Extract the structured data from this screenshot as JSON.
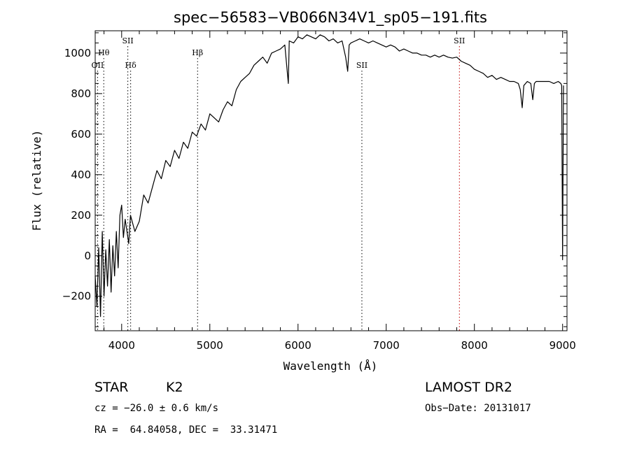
{
  "chart_data": {
    "type": "line",
    "title": "spec−56583−VB066N34V1_sp05−191.fits",
    "xlabel": "Wavelength (Å)",
    "ylabel": "Flux (relative)",
    "xlim": [
      3700,
      9050
    ],
    "ylim": [
      -370,
      1110
    ],
    "xticks": [
      4000,
      5000,
      6000,
      7000,
      8000,
      9000
    ],
    "yticks": [
      -200,
      0,
      200,
      400,
      600,
      800,
      1000
    ],
    "ytick_labels": [
      "−200",
      "0",
      "200",
      "400",
      "600",
      "800",
      "1000"
    ],
    "grid": false,
    "line_color": "#000000",
    "series": [
      {
        "x": [
          3700,
          3720,
          3740,
          3760,
          3780,
          3800,
          3820,
          3840,
          3860,
          3880,
          3900,
          3920,
          3940,
          3960,
          3980,
          4000,
          4020,
          4040,
          4060,
          4080,
          4100,
          4150,
          4200,
          4250,
          4300,
          4350,
          4400,
          4450,
          4500,
          4550,
          4600,
          4650,
          4700,
          4750,
          4800,
          4850,
          4900,
          4950,
          5000,
          5050,
          5100,
          5150,
          5200,
          5250,
          5300,
          5350,
          5400,
          5450,
          5500,
          5550,
          5600,
          5650,
          5700,
          5750,
          5800,
          5850,
          5890,
          5900,
          5950,
          6000,
          6050,
          6100,
          6150,
          6200,
          6250,
          6300,
          6350,
          6400,
          6450,
          6500,
          6540,
          6563,
          6580,
          6600,
          6650,
          6700,
          6750,
          6800,
          6850,
          6900,
          6950,
          7000,
          7050,
          7100,
          7150,
          7200,
          7250,
          7300,
          7350,
          7400,
          7450,
          7500,
          7550,
          7600,
          7650,
          7700,
          7750,
          7800,
          7850,
          7900,
          7950,
          8000,
          8050,
          8100,
          8150,
          8200,
          8250,
          8300,
          8350,
          8400,
          8450,
          8498,
          8520,
          8542,
          8560,
          8600,
          8640,
          8662,
          8680,
          8700,
          8750,
          8800,
          8850,
          8900,
          8950,
          8980,
          8990,
          9000,
          9010
        ],
        "y": [
          -100,
          -250,
          40,
          -300,
          120,
          -200,
          30,
          -150,
          80,
          -180,
          50,
          -100,
          120,
          -60,
          200,
          250,
          90,
          180,
          120,
          60,
          200,
          120,
          170,
          300,
          260,
          340,
          420,
          380,
          470,
          440,
          520,
          480,
          560,
          530,
          610,
          590,
          650,
          620,
          700,
          680,
          660,
          720,
          760,
          740,
          820,
          860,
          880,
          900,
          940,
          960,
          980,
          950,
          1000,
          1010,
          1020,
          1040,
          850,
          1060,
          1050,
          1080,
          1070,
          1090,
          1080,
          1070,
          1090,
          1080,
          1060,
          1070,
          1050,
          1060,
          980,
          910,
          1040,
          1050,
          1060,
          1070,
          1060,
          1050,
          1060,
          1050,
          1040,
          1030,
          1040,
          1030,
          1010,
          1020,
          1010,
          1000,
          1000,
          990,
          990,
          980,
          990,
          980,
          990,
          980,
          975,
          980,
          960,
          950,
          940,
          920,
          910,
          900,
          880,
          890,
          870,
          880,
          870,
          860,
          860,
          850,
          820,
          730,
          840,
          860,
          850,
          770,
          850,
          860,
          860,
          860,
          860,
          850,
          860,
          850,
          840,
          -20,
          840
        ]
      }
    ],
    "line_markers": [
      {
        "label": "OII",
        "x": 3727,
        "label_row": "low",
        "color": "#000000"
      },
      {
        "label": "Hθ",
        "x": 3797,
        "label_row": "mid",
        "color": "#000000"
      },
      {
        "label": "SII",
        "x": 4070,
        "label_row": "high",
        "color": "#000000"
      },
      {
        "label": "Hδ",
        "x": 4102,
        "label_row": "low",
        "color": "#000000"
      },
      {
        "label": "Hβ",
        "x": 4861,
        "label_row": "mid",
        "color": "#000000"
      },
      {
        "label": "SII",
        "x": 6724,
        "label_row": "low",
        "color": "#000000"
      },
      {
        "label": "SII",
        "x": 7830,
        "label_row": "high",
        "color": "#c00000"
      }
    ]
  },
  "info": {
    "object_class": "STAR",
    "subclass": "K2",
    "survey": "LAMOST DR2",
    "velocity": "cz = −26.0 ± 0.6 km/s",
    "obs_date": "Obs−Date: 20131017",
    "coords": "RA =  64.84058, DEC =  33.31471"
  }
}
